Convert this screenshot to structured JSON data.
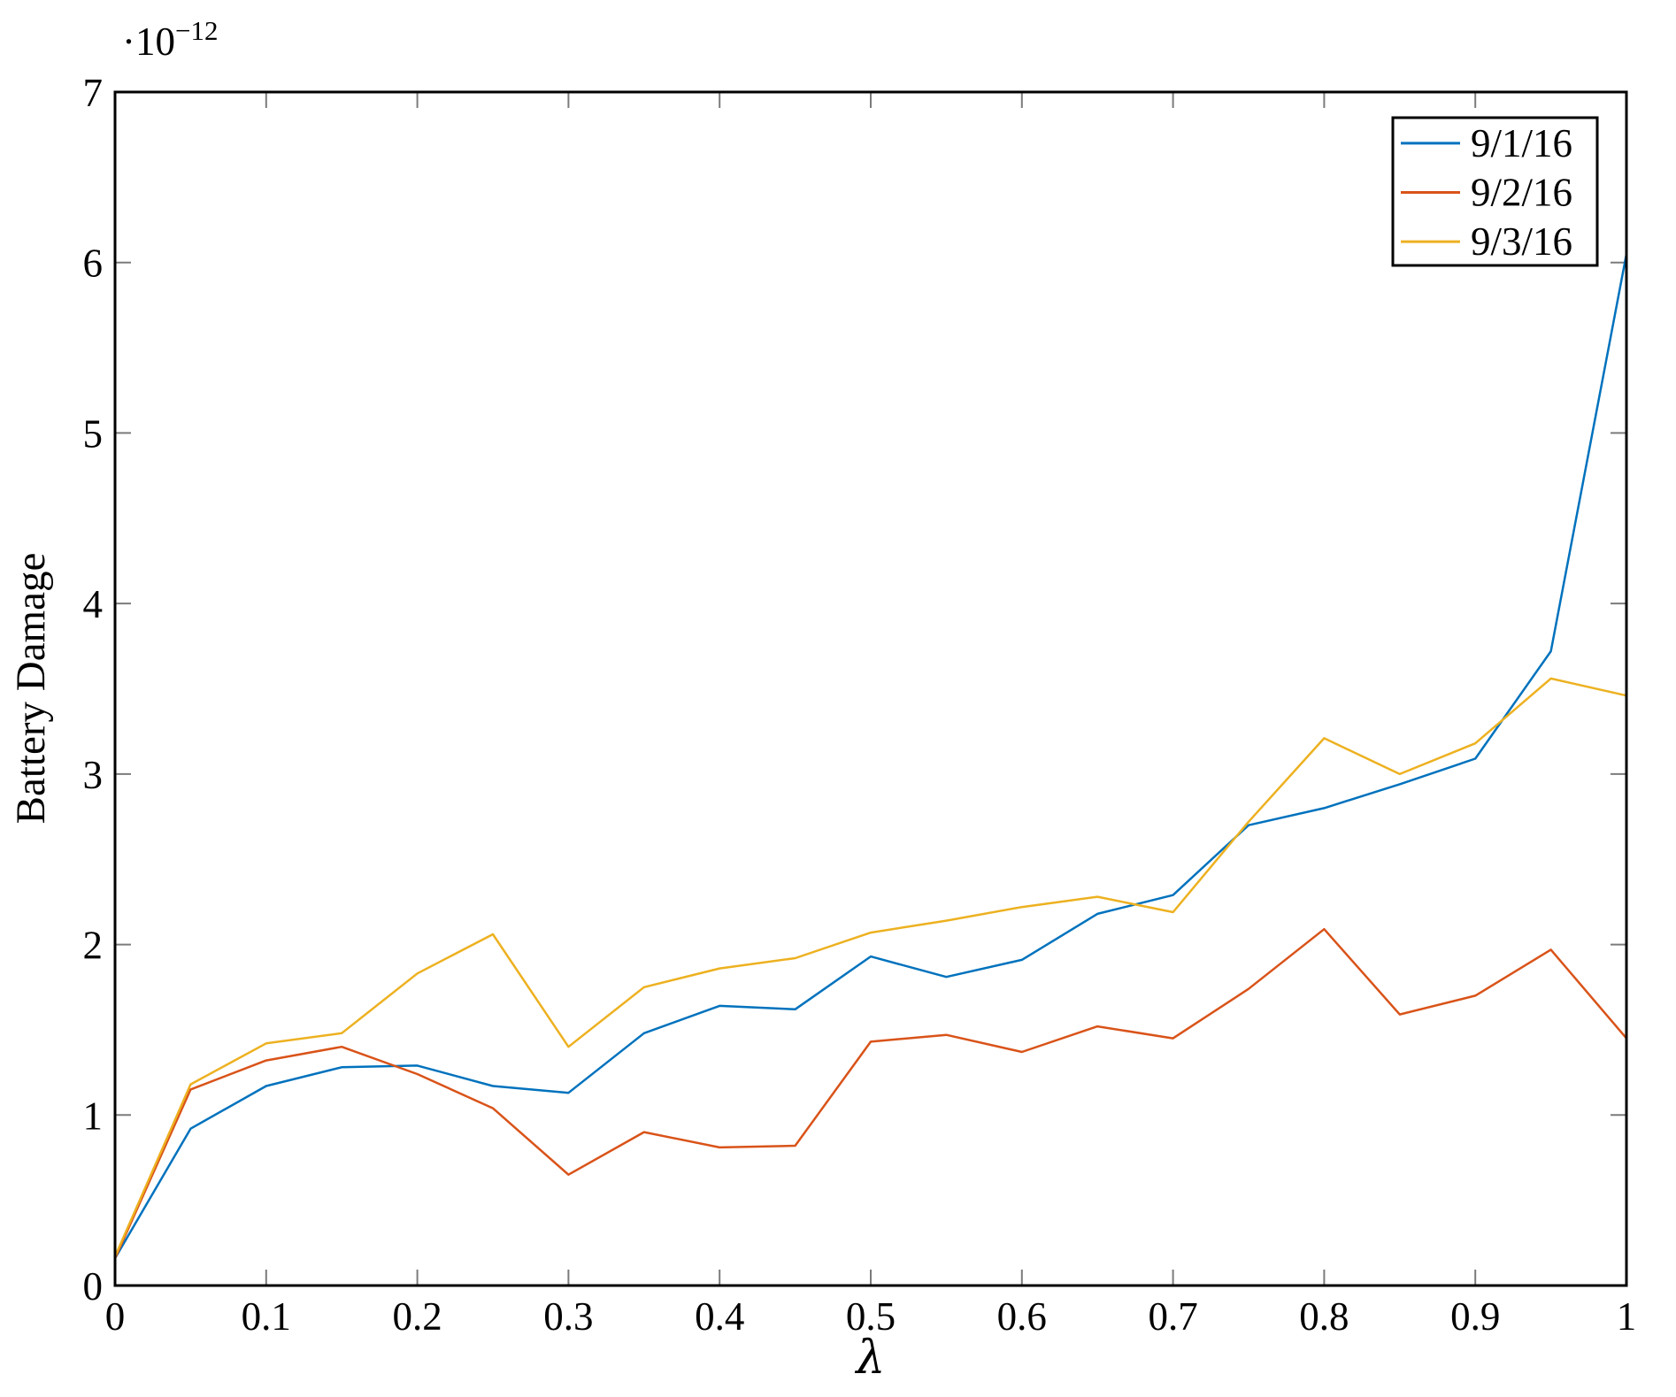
{
  "figure": {
    "y_multiplier_base": "·10",
    "y_multiplier_exponent": "−12"
  },
  "chart_data": {
    "type": "line",
    "title": "",
    "xlabel": "λ",
    "ylabel": "Battery Damage",
    "y_scale_label": "·10^−12",
    "xlim": [
      0,
      1
    ],
    "ylim": [
      0,
      7
    ],
    "grid": false,
    "legend_position": "top-right",
    "x_ticks": [
      0,
      0.1,
      0.2,
      0.3,
      0.4,
      0.5,
      0.6,
      0.7,
      0.8,
      0.9,
      1
    ],
    "x_tick_labels": [
      "0",
      "0.1",
      "0.2",
      "0.3",
      "0.4",
      "0.5",
      "0.6",
      "0.7",
      "0.8",
      "0.9",
      "1"
    ],
    "y_ticks": [
      0,
      1,
      2,
      3,
      4,
      5,
      6,
      7
    ],
    "y_tick_labels": [
      "0",
      "1",
      "2",
      "3",
      "4",
      "5",
      "6",
      "7"
    ],
    "x": [
      0,
      0.05,
      0.1,
      0.15,
      0.2,
      0.25,
      0.3,
      0.35,
      0.4,
      0.45,
      0.5,
      0.55,
      0.6,
      0.65,
      0.7,
      0.75,
      0.8,
      0.85,
      0.9,
      0.95,
      1
    ],
    "series": [
      {
        "name": "9/1/16",
        "color": "#0072BD",
        "values": [
          0.16,
          0.92,
          1.17,
          1.28,
          1.29,
          1.17,
          1.13,
          1.48,
          1.64,
          1.62,
          1.93,
          1.81,
          1.91,
          2.18,
          2.29,
          2.7,
          2.8,
          2.94,
          3.09,
          3.72,
          6.05
        ]
      },
      {
        "name": "9/2/16",
        "color": "#D95319",
        "values": [
          0.16,
          1.15,
          1.32,
          1.4,
          1.24,
          1.04,
          0.65,
          0.9,
          0.81,
          0.82,
          1.43,
          1.47,
          1.37,
          1.52,
          1.45,
          1.74,
          2.09,
          1.59,
          1.7,
          1.97,
          1.45
        ]
      },
      {
        "name": "9/3/16",
        "color": "#EDB120",
        "values": [
          0.17,
          1.18,
          1.42,
          1.48,
          1.83,
          2.06,
          1.4,
          1.75,
          1.86,
          1.92,
          2.07,
          2.14,
          2.22,
          2.28,
          2.19,
          2.72,
          3.21,
          3.0,
          3.18,
          3.56,
          3.46
        ]
      }
    ],
    "axis_color": "#000000",
    "tick_color": "#7b7b7b"
  }
}
